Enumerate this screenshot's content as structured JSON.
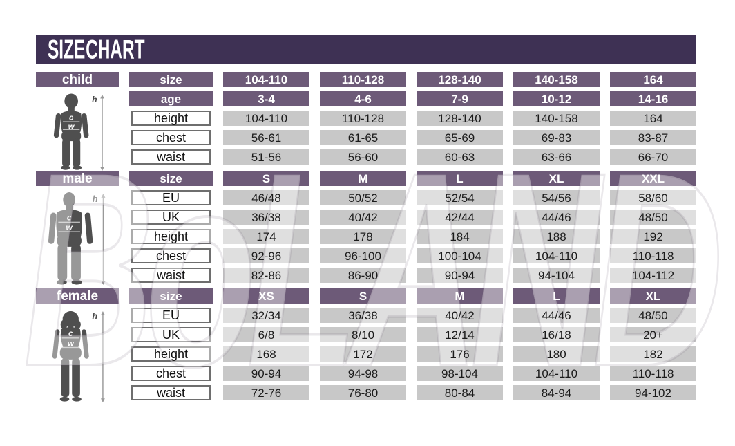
{
  "title": "SIZE CHART",
  "watermark_text": "BoLAND",
  "figure_letters": {
    "height": "h",
    "chest": "c",
    "waist": "w"
  },
  "colors": {
    "title_bg": "#3e3154",
    "header_bg": "#6d5a78",
    "value_cell_bg": "#c8c8c8",
    "label_cell_border": "#6e6e6e",
    "silhouette": "#4f4f4f",
    "background": "#ffffff"
  },
  "chart_data": {
    "type": "table",
    "title": "SIZE CHART",
    "tables": [
      {
        "id": "child",
        "label": "child",
        "header_rows": [
          {
            "label": "size",
            "values": [
              "104-110",
              "110-128",
              "128-140",
              "140-158",
              "164"
            ]
          },
          {
            "label": "age",
            "values": [
              "3-4",
              "4-6",
              "7-9",
              "10-12",
              "14-16"
            ]
          }
        ],
        "data_rows": [
          {
            "label": "height",
            "values": [
              "104-110",
              "110-128",
              "128-140",
              "140-158",
              "164"
            ]
          },
          {
            "label": "chest",
            "values": [
              "56-61",
              "61-65",
              "65-69",
              "69-83",
              "83-87"
            ]
          },
          {
            "label": "waist",
            "values": [
              "51-56",
              "56-60",
              "60-63",
              "63-66",
              "66-70"
            ]
          }
        ]
      },
      {
        "id": "male",
        "label": "male",
        "header_rows": [
          {
            "label": "size",
            "values": [
              "S",
              "M",
              "L",
              "XL",
              "XXL"
            ]
          }
        ],
        "data_rows": [
          {
            "label": "EU",
            "values": [
              "46/48",
              "50/52",
              "52/54",
              "54/56",
              "58/60"
            ]
          },
          {
            "label": "UK",
            "values": [
              "36/38",
              "40/42",
              "42/44",
              "44/46",
              "48/50"
            ]
          },
          {
            "label": "height",
            "values": [
              "174",
              "178",
              "184",
              "188",
              "192"
            ]
          },
          {
            "label": "chest",
            "values": [
              "92-96",
              "96-100",
              "100-104",
              "104-110",
              "110-118"
            ]
          },
          {
            "label": "waist",
            "values": [
              "82-86",
              "86-90",
              "90-94",
              "94-104",
              "104-112"
            ]
          }
        ]
      },
      {
        "id": "female",
        "label": "female",
        "header_rows": [
          {
            "label": "size",
            "values": [
              "XS",
              "S",
              "M",
              "L",
              "XL"
            ]
          }
        ],
        "data_rows": [
          {
            "label": "EU",
            "values": [
              "32/34",
              "36/38",
              "40/42",
              "44/46",
              "48/50"
            ]
          },
          {
            "label": "UK",
            "values": [
              "6/8",
              "8/10",
              "12/14",
              "16/18",
              "20+"
            ]
          },
          {
            "label": "height",
            "values": [
              "168",
              "172",
              "176",
              "180",
              "182"
            ]
          },
          {
            "label": "chest",
            "values": [
              "90-94",
              "94-98",
              "98-104",
              "104-110",
              "110-118"
            ]
          },
          {
            "label": "waist",
            "values": [
              "72-76",
              "76-80",
              "80-84",
              "84-94",
              "94-102"
            ]
          }
        ]
      }
    ]
  }
}
